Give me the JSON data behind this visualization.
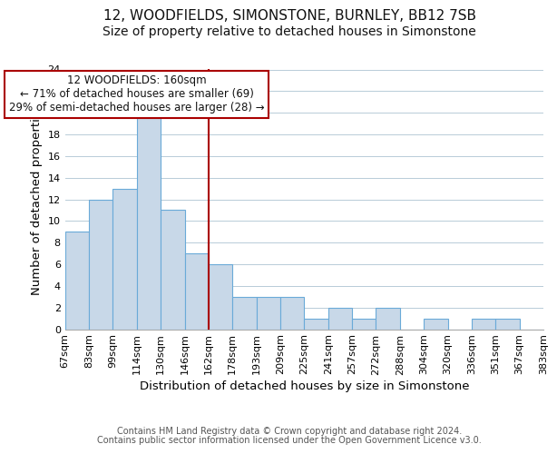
{
  "title_line1": "12, WOODFIELDS, SIMONSTONE, BURNLEY, BB12 7SB",
  "title_line2": "Size of property relative to detached houses in Simonstone",
  "xlabel": "Distribution of detached houses by size in Simonstone",
  "ylabel": "Number of detached properties",
  "footer_line1": "Contains HM Land Registry data © Crown copyright and database right 2024.",
  "footer_line2": "Contains public sector information licensed under the Open Government Licence v3.0.",
  "bin_labels": [
    "67sqm",
    "83sqm",
    "99sqm",
    "114sqm",
    "130sqm",
    "146sqm",
    "162sqm",
    "178sqm",
    "193sqm",
    "209sqm",
    "225sqm",
    "241sqm",
    "257sqm",
    "272sqm",
    "288sqm",
    "304sqm",
    "320sqm",
    "336sqm",
    "351sqm",
    "367sqm",
    "383sqm"
  ],
  "bar_values": [
    9,
    12,
    13,
    20,
    11,
    7,
    6,
    3,
    3,
    3,
    1,
    2,
    1,
    2,
    0,
    1,
    0,
    1,
    1,
    0
  ],
  "bar_color": "#c8d8e8",
  "bar_edge_color": "#6aaad8",
  "property_line_x": 6,
  "property_line_color": "#aa0000",
  "annotation_line1": "12 WOODFIELDS: 160sqm",
  "annotation_line2": "← 71% of detached houses are smaller (69)",
  "annotation_line3": "29% of semi-detached houses are larger (28) →",
  "annotation_box_edge_color": "#aa0000",
  "ylim": [
    0,
    24
  ],
  "yticks": [
    0,
    2,
    4,
    6,
    8,
    10,
    12,
    14,
    16,
    18,
    20,
    22,
    24
  ],
  "grid_color": "#b8ccd8",
  "background_color": "#ffffff",
  "title_fontsize": 11,
  "subtitle_fontsize": 10,
  "axis_label_fontsize": 9.5,
  "tick_fontsize": 8,
  "annotation_fontsize": 8.5,
  "footer_fontsize": 7
}
